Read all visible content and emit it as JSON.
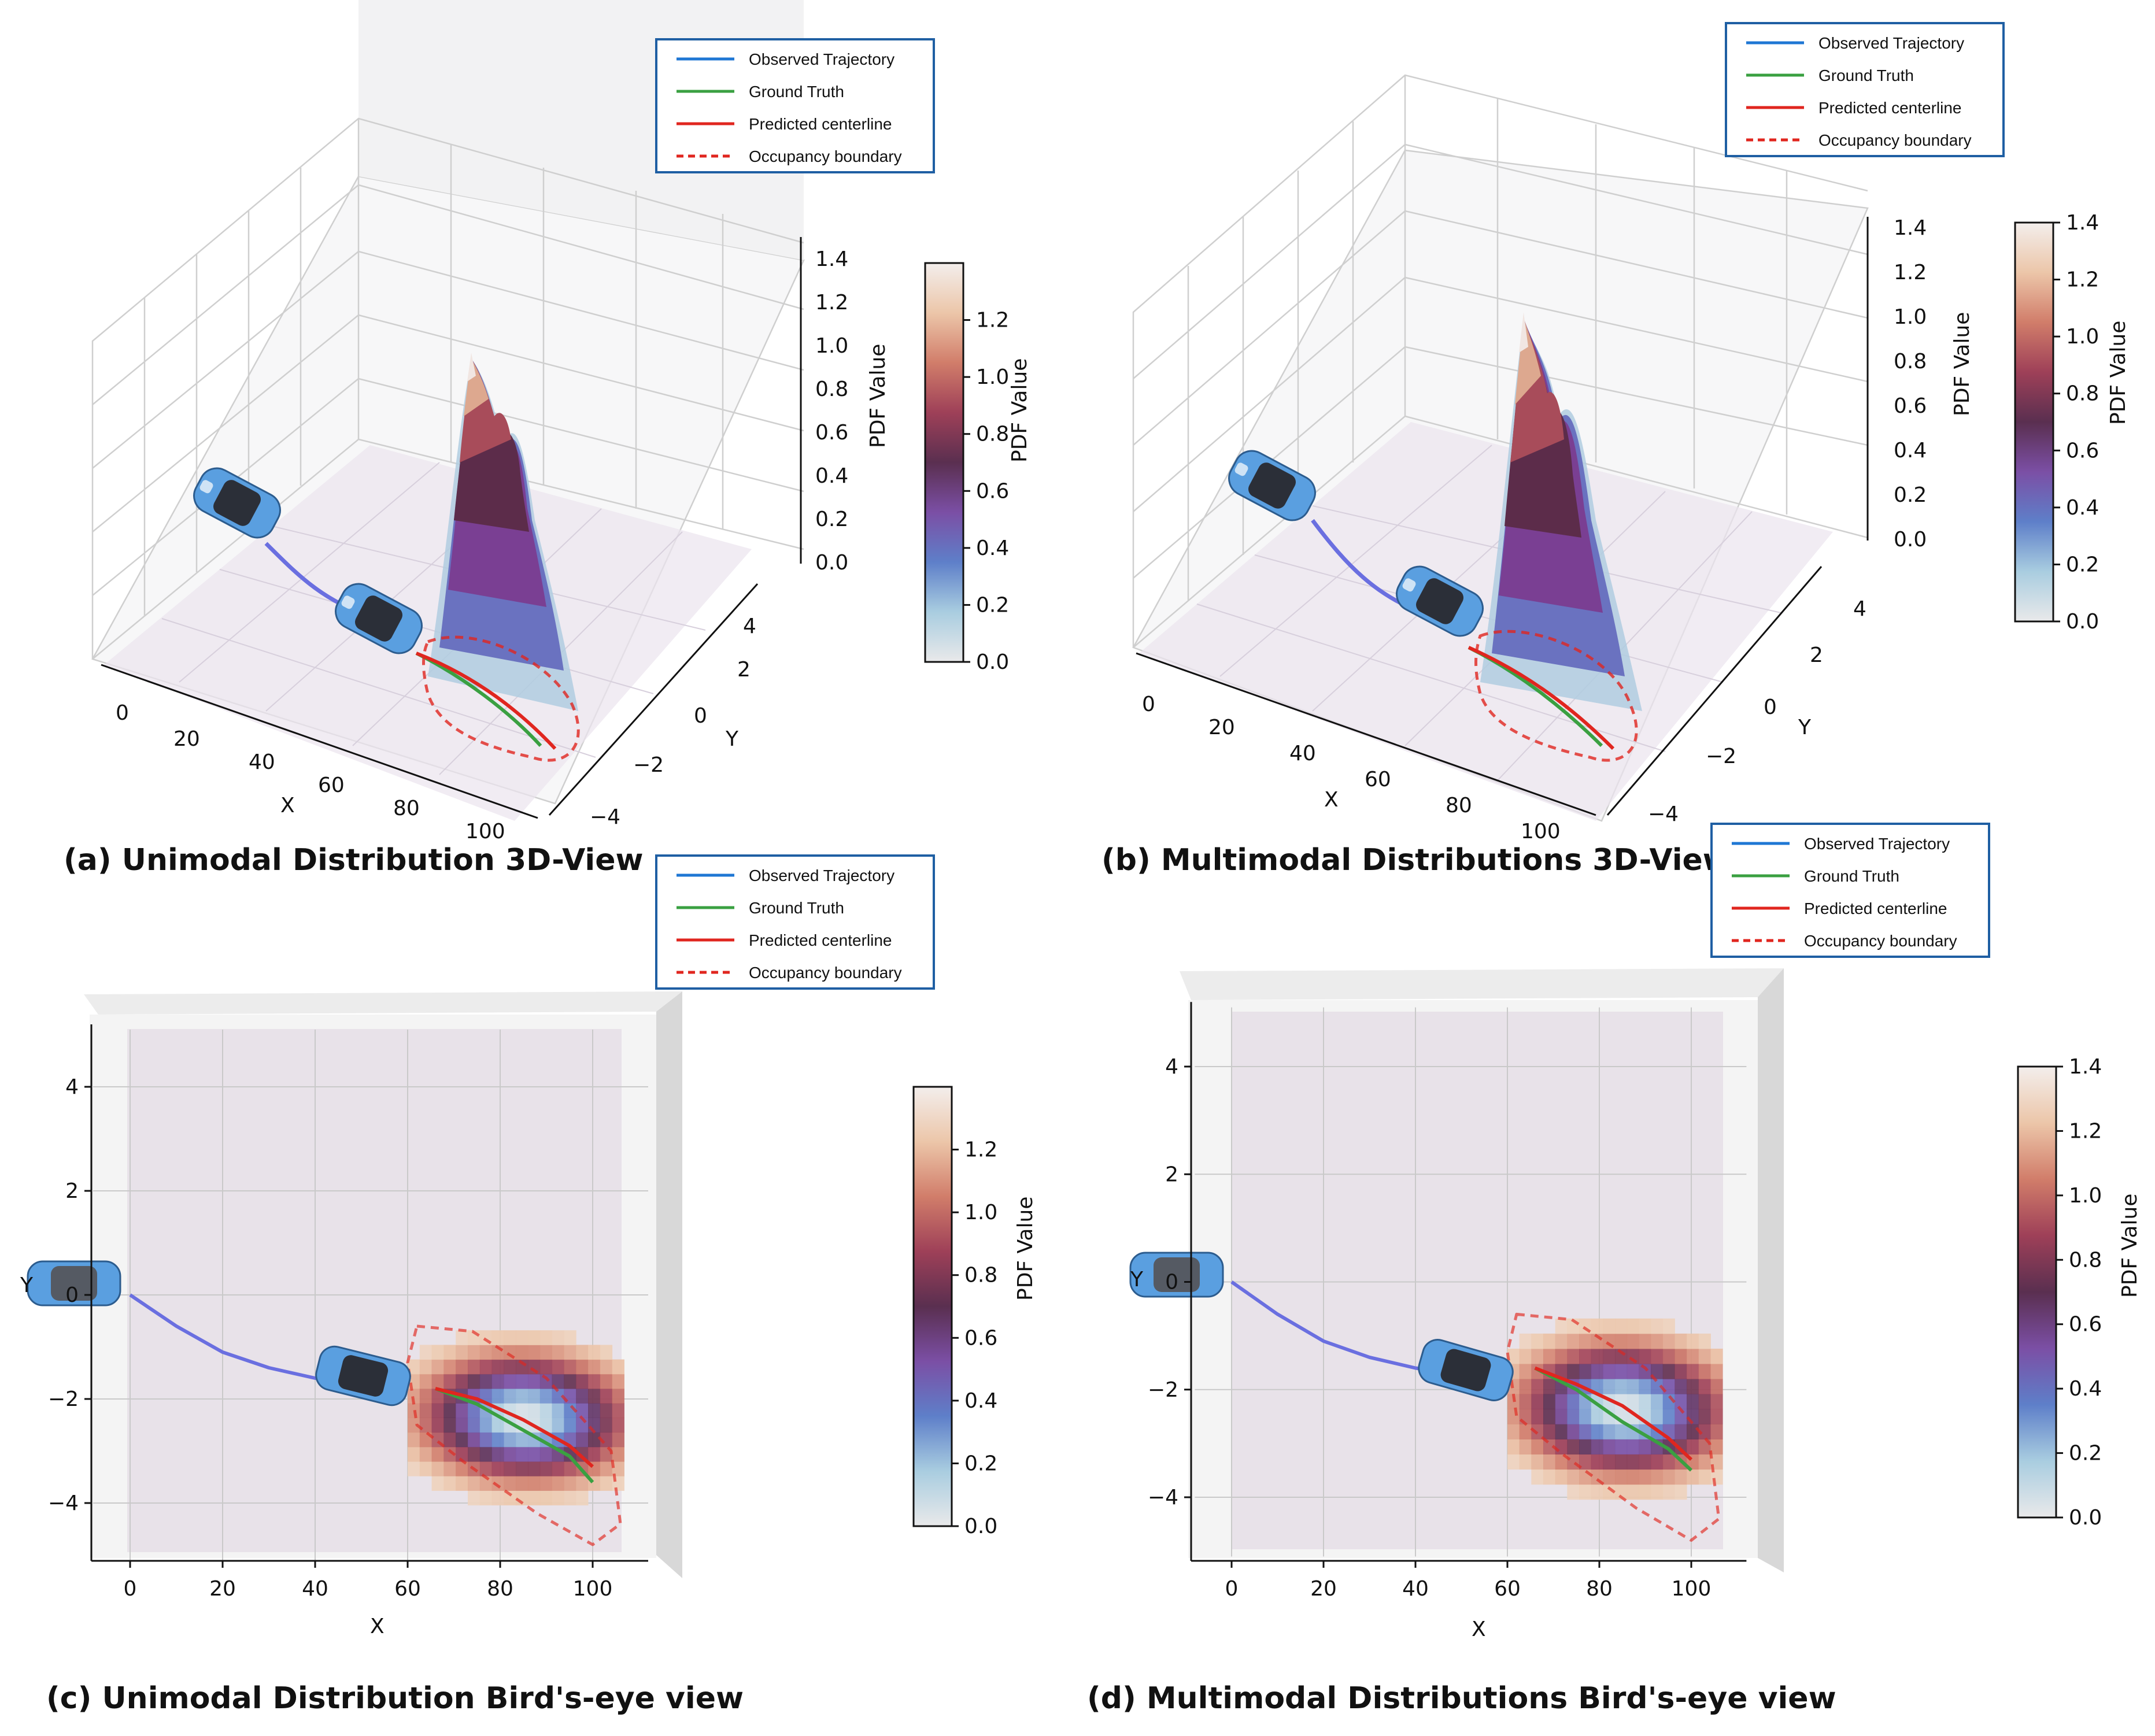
{
  "legend": {
    "items": [
      {
        "label": "Observed Trajectory",
        "color": "#1f77d4",
        "style": "solid"
      },
      {
        "label": "Ground Truth",
        "color": "#3aa041",
        "style": "solid"
      },
      {
        "label": "Predicted centerline",
        "color": "#e0261f",
        "style": "solid"
      },
      {
        "label": "Occupancy boundary",
        "color": "#e0261f",
        "style": "dashed"
      }
    ],
    "border_color": "#1f5fa3"
  },
  "colormap": {
    "label": "PDF Value",
    "stops": [
      "#e9e9ea",
      "#a9cde0",
      "#5e7fc9",
      "#7b4fa5",
      "#5a2f50",
      "#9e4058",
      "#d17d6a",
      "#ecc6a9",
      "#f3eeec"
    ]
  },
  "chart_data": [
    {
      "id": "a",
      "type": "3d-surface",
      "caption": "(a) Unimodal Distribution 3D-View",
      "xlabel": "X",
      "ylabel": "Y",
      "zlabel": "PDF Value",
      "xticks": [
        "0",
        "20",
        "40",
        "60",
        "80",
        "100"
      ],
      "yticks": [
        "−4",
        "−2",
        "0",
        "2",
        "4"
      ],
      "zticks": [
        "0.0",
        "0.2",
        "0.4",
        "0.6",
        "0.8",
        "1.0",
        "1.2",
        "1.4"
      ],
      "xlim": [
        0,
        100
      ],
      "ylim": [
        -4,
        4
      ],
      "zlim": [
        0,
        1.4
      ],
      "colorbar": {
        "label": "PDF Value",
        "ticks": [
          "0.0",
          "0.2",
          "0.4",
          "0.6",
          "0.8",
          "1.0",
          "1.2"
        ],
        "range": [
          0,
          1.4
        ]
      },
      "peak_pdf": 1.1
    },
    {
      "id": "b",
      "type": "3d-surface",
      "caption": "(b) Multimodal Distributions 3D-View",
      "xlabel": "X",
      "ylabel": "Y",
      "zlabel": "PDF Value",
      "xticks": [
        "0",
        "20",
        "40",
        "60",
        "80",
        "100"
      ],
      "yticks": [
        "−4",
        "−2",
        "0",
        "2",
        "4"
      ],
      "zticks": [
        "0.0",
        "0.2",
        "0.4",
        "0.6",
        "0.8",
        "1.0",
        "1.2",
        "1.4"
      ],
      "xlim": [
        0,
        100
      ],
      "ylim": [
        -4,
        4
      ],
      "zlim": [
        0,
        1.4
      ],
      "colorbar": {
        "label": "PDF Value",
        "ticks": [
          "0.0",
          "0.2",
          "0.4",
          "0.6",
          "0.8",
          "1.0",
          "1.2",
          "1.4"
        ],
        "range": [
          0,
          1.4
        ]
      },
      "peak_pdf": 1.25
    },
    {
      "id": "c",
      "type": "heatmap",
      "caption": "(c) Unimodal Distribution Bird's-eye view",
      "xlabel": "X",
      "ylabel": "Y",
      "xticks": [
        "0",
        "20",
        "40",
        "60",
        "80",
        "100"
      ],
      "yticks": [
        "−4",
        "−2",
        "0",
        "2",
        "4"
      ],
      "xlim": [
        -8,
        118
      ],
      "ylim": [
        -5.2,
        5.2
      ],
      "colorbar": {
        "label": "PDF Value",
        "ticks": [
          "0.0",
          "0.2",
          "0.4",
          "0.6",
          "0.8",
          "1.0",
          "1.2"
        ],
        "range": [
          0,
          1.4
        ]
      },
      "observed": [
        [
          0,
          0
        ],
        [
          10,
          -0.6
        ],
        [
          20,
          -1.1
        ],
        [
          30,
          -1.4
        ],
        [
          40,
          -1.6
        ],
        [
          48,
          -1.7
        ]
      ],
      "ground_truth": [
        [
          66,
          -1.8
        ],
        [
          75,
          -2.1
        ],
        [
          85,
          -2.6
        ],
        [
          95,
          -3.1
        ],
        [
          100,
          -3.6
        ]
      ],
      "predicted": [
        [
          66,
          -1.8
        ],
        [
          75,
          -2.0
        ],
        [
          85,
          -2.4
        ],
        [
          95,
          -2.9
        ],
        [
          100,
          -3.3
        ]
      ]
    },
    {
      "id": "d",
      "type": "heatmap",
      "caption": "(d) Multimodal Distributions Bird's-eye view",
      "xlabel": "X",
      "ylabel": "Y",
      "xticks": [
        "0",
        "20",
        "40",
        "60",
        "80",
        "100"
      ],
      "yticks": [
        "−4",
        "−2",
        "0",
        "2",
        "4"
      ],
      "xlim": [
        -8,
        118
      ],
      "ylim": [
        -5.2,
        5.2
      ],
      "colorbar": {
        "label": "PDF Value",
        "ticks": [
          "0.0",
          "0.2",
          "0.4",
          "0.6",
          "0.8",
          "1.0",
          "1.2",
          "1.4"
        ],
        "range": [
          0,
          1.4
        ]
      },
      "observed": [
        [
          0,
          0
        ],
        [
          10,
          -0.6
        ],
        [
          20,
          -1.1
        ],
        [
          30,
          -1.4
        ],
        [
          40,
          -1.6
        ],
        [
          48,
          -1.7
        ]
      ],
      "ground_truth": [
        [
          66,
          -1.6
        ],
        [
          75,
          -2.0
        ],
        [
          85,
          -2.6
        ],
        [
          95,
          -3.1
        ],
        [
          100,
          -3.5
        ]
      ],
      "predicted": [
        [
          66,
          -1.6
        ],
        [
          75,
          -1.9
        ],
        [
          85,
          -2.3
        ],
        [
          95,
          -2.9
        ],
        [
          100,
          -3.3
        ]
      ]
    }
  ]
}
